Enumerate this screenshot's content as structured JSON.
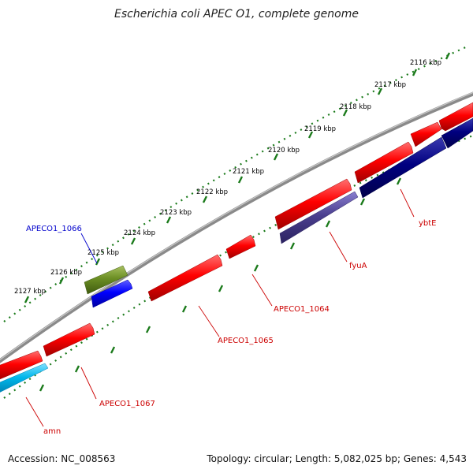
{
  "title": "Escherichia coli APEC O1, complete genome",
  "footer": {
    "accession": "Accession: NC_008563",
    "topology": "Topology: circular; Length: 5,082,025 bp; Genes: 4,543"
  },
  "kbp_labels": [
    "2116 kbp",
    "2117 kbp",
    "2118 kbp",
    "2119 kbp",
    "2120 kbp",
    "2121 kbp",
    "2122 kbp",
    "2123 kbp",
    "2124 kbp",
    "2125 kbp",
    "2126 kbp",
    "2127 kbp"
  ],
  "gene_labels": [
    {
      "text": "ybtE",
      "color": "#cc0000"
    },
    {
      "text": "fyuA",
      "color": "#cc0000"
    },
    {
      "text": "APECO1_1064",
      "color": "#cc0000"
    },
    {
      "text": "APECO1_1065",
      "color": "#cc0000"
    },
    {
      "text": "APECO1_1067",
      "color": "#cc0000"
    },
    {
      "text": "amn",
      "color": "#cc0000"
    },
    {
      "text": "APECO1_1066",
      "color": "#0000cc"
    }
  ],
  "colors": {
    "backbone": "#8a8a8a",
    "ticks": "#1a7a1a",
    "cds_red": "#ff0000",
    "cds_navy": "#000080",
    "cds_purple": "#4b3f8f",
    "cds_blue": "#0000ff",
    "cds_olive": "#6b8e23",
    "cds_cyan": "#00b7eb"
  }
}
